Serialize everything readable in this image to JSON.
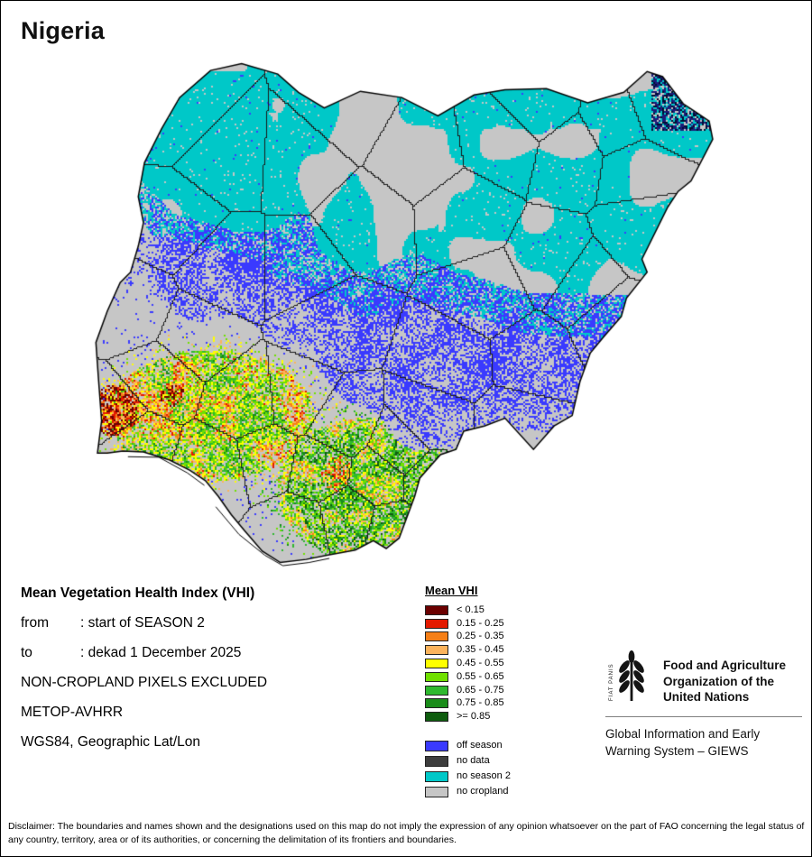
{
  "title": "Nigeria",
  "info": {
    "heading": "Mean Vegetation Health Index (VHI)",
    "rows": [
      {
        "label": "from",
        "value": ": start of SEASON 2"
      },
      {
        "label": "to",
        "value": ": dekad 1 December 2025"
      }
    ],
    "notes": [
      "NON-CROPLAND PIXELS EXCLUDED",
      "METOP-AVHRR",
      "WGS84, Geographic Lat/Lon"
    ]
  },
  "legend": {
    "title": "Mean VHI",
    "classes": [
      {
        "label": "< 0.15",
        "color": "#6b0000"
      },
      {
        "label": "0.15 - 0.25",
        "color": "#e31a00"
      },
      {
        "label": "0.25 - 0.35",
        "color": "#f57f17"
      },
      {
        "label": "0.35 - 0.45",
        "color": "#fbb35c"
      },
      {
        "label": "0.45 - 0.55",
        "color": "#ffff00"
      },
      {
        "label": "0.55 - 0.65",
        "color": "#70e000"
      },
      {
        "label": "0.65 - 0.75",
        "color": "#2eb82e"
      },
      {
        "label": "0.75 - 0.85",
        "color": "#1a8c1a"
      },
      {
        "label": ">= 0.85",
        "color": "#0e5c0e"
      }
    ],
    "categories": [
      {
        "label": "off season",
        "color": "#3a3aff"
      },
      {
        "label": "no data",
        "color": "#3d3d3d"
      },
      {
        "label": "no season 2",
        "color": "#00c8c8"
      },
      {
        "label": "no cropland",
        "color": "#c6c6c6"
      }
    ]
  },
  "branding": {
    "logo_motto": "FIAT PANIS",
    "org_lines": [
      "Food and Agriculture",
      "Organization of the",
      "United Nations"
    ],
    "giews_lines": [
      "Global Information and Early",
      "Warning System – GIEWS"
    ]
  },
  "disclaimer": "Disclaimer: The boundaries and names shown and the designations used on this map do not imply the expression of any opinion whatsoever on the part of FAO concerning the legal status of any country, territory, area or of its authorities, or concerning the delimitation of its frontiers and boundaries."
}
